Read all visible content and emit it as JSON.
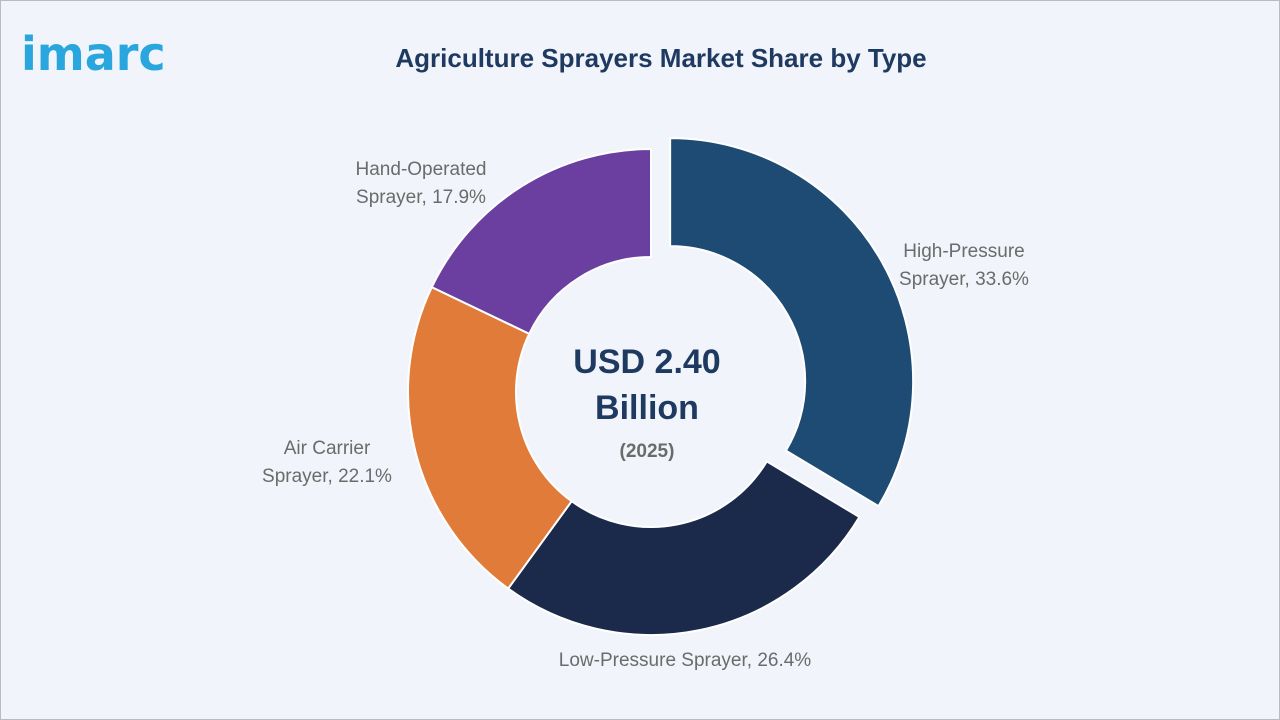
{
  "brand": {
    "logo_text": "imarc",
    "logo_color": "#2aa6de"
  },
  "chart_data": {
    "type": "pie",
    "title": "Agriculture Sprayers Market Share by Type",
    "center": {
      "value_label": "USD 2.40",
      "unit_label": "Billion",
      "year_label": "(2025)"
    },
    "series": [
      {
        "name": "High-Pressure Sprayer",
        "label_lines": [
          "High-Pressure",
          "Sprayer, 33.6%"
        ],
        "value": 33.6,
        "color": "#1e4b73",
        "exploded": true
      },
      {
        "name": "Low-Pressure Sprayer",
        "label_lines": [
          "Low-Pressure Sprayer, 26.4%"
        ],
        "value": 26.4,
        "color": "#1b2a4a",
        "exploded": false
      },
      {
        "name": "Air Carrier Sprayer",
        "label_lines": [
          "Air Carrier",
          "Sprayer, 22.1%"
        ],
        "value": 22.1,
        "color": "#e07b39",
        "exploded": false
      },
      {
        "name": "Hand-Operated Sprayer",
        "label_lines": [
          "Hand-Operated",
          "Sprayer, 17.9%"
        ],
        "value": 17.9,
        "color": "#6b3fa0",
        "exploded": false
      }
    ]
  }
}
